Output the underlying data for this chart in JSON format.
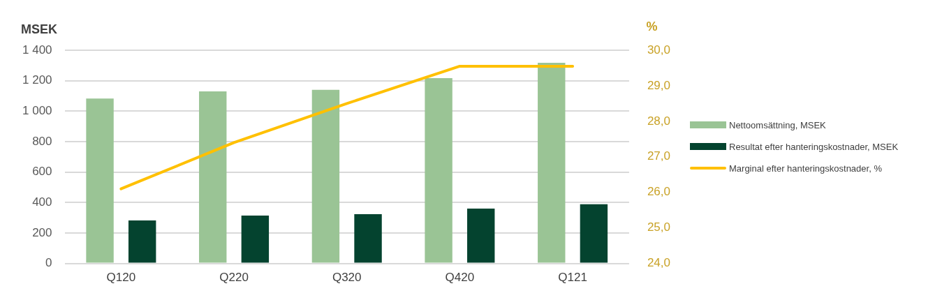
{
  "chart_data": {
    "type": "bar",
    "categories": [
      "Q120",
      "Q220",
      "Q320",
      "Q420",
      "Q121"
    ],
    "series": [
      {
        "name": "Nettoomsättning, MSEK",
        "color": "#9ac495",
        "values": [
          1083,
          1130,
          1140,
          1217,
          1317
        ]
      },
      {
        "name": "Resultat efter hanteringskostnader, MSEK",
        "color": "#04432f",
        "values": [
          282,
          314,
          323,
          360,
          389
        ]
      },
      {
        "name": "Marginal efter hanteringskostnader, %",
        "type": "line",
        "axis": "y2",
        "color": "#ffc000",
        "values": [
          26.1,
          27.4,
          28.5,
          29.55,
          29.55
        ]
      }
    ],
    "ylabel": "MSEK",
    "y2label": "%",
    "ylim": [
      0,
      1400
    ],
    "yticks": [
      0,
      200,
      400,
      600,
      800,
      {
        "value": 1000,
        "label": "1 000"
      },
      {
        "value": 1200,
        "label": "1 200"
      },
      {
        "value": 1400,
        "label": "1 400"
      }
    ],
    "y2lim": [
      24,
      30
    ],
    "y2ticks": [
      {
        "value": 24,
        "label": "24,0"
      },
      {
        "value": 25,
        "label": "25,0"
      },
      {
        "value": 26,
        "label": "26,0"
      },
      {
        "value": 27,
        "label": "27,0"
      },
      {
        "value": 28,
        "label": "28,0"
      },
      {
        "value": 29,
        "label": "29,0"
      },
      {
        "value": 30,
        "label": "30,0"
      }
    ],
    "grid": "y",
    "legend": "right",
    "marker": "none"
  }
}
